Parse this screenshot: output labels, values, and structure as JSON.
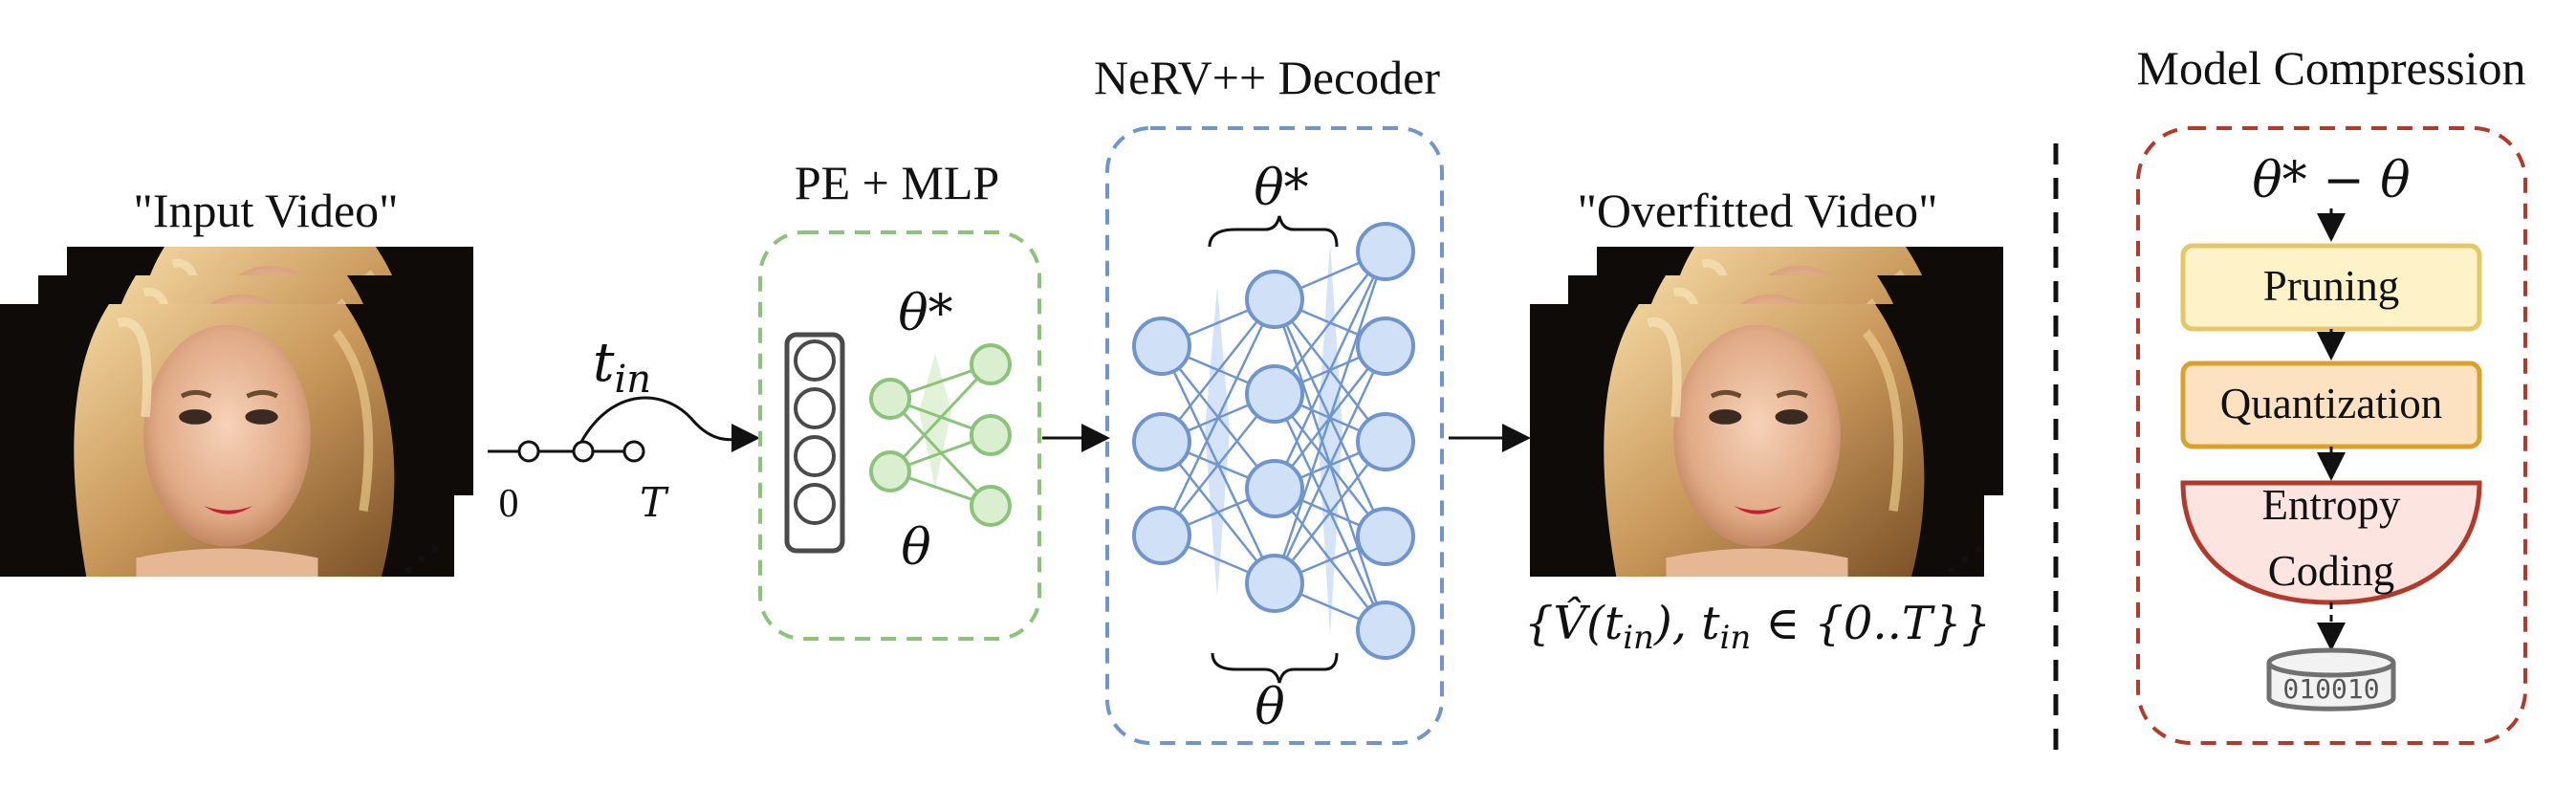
{
  "titles": {
    "input_video": "\"Input Video\"",
    "pe_mlp": "PE + MLP",
    "decoder": "NeRV++ Decoder",
    "overfitted_video": "\"Overfitted Video\"",
    "model_compression": "Model Compression"
  },
  "math": {
    "t_in": "t",
    "t_in_sub": "in",
    "axis_zero": "0",
    "axis_T": "T",
    "theta_star": "θ*",
    "theta": "θ",
    "theta_diff": "θ* − θ",
    "output_set": "{V̂(t",
    "output_set_sub1": "in",
    "output_set_mid": "), t",
    "output_set_sub2": "in",
    "output_set_end": " ∈ {0..T}}"
  },
  "compression": {
    "pruning": "Pruning",
    "quantization": "Quantization",
    "entropy_line1": "Entropy",
    "entropy_line2": "Coding",
    "bits": "010010"
  },
  "colors": {
    "mlp_green": "#8cc37a",
    "mlp_fill": "#d9efcf",
    "decoder_blue": "#6f95cc",
    "decoder_fill": "#cfe0f7",
    "compression_red": "#b23a2a",
    "pruning_fill": "#fdf2c8",
    "pruning_stroke": "#e4c766",
    "quant_fill": "#fde2c2",
    "quant_stroke": "#d9a22c",
    "entropy_fill": "#fce4e1"
  },
  "icons": {
    "input_frames": "video-frame-stack",
    "output_frames": "video-frame-stack",
    "pe_vector": "vertical-neuron-column",
    "storage": "database-disk"
  }
}
